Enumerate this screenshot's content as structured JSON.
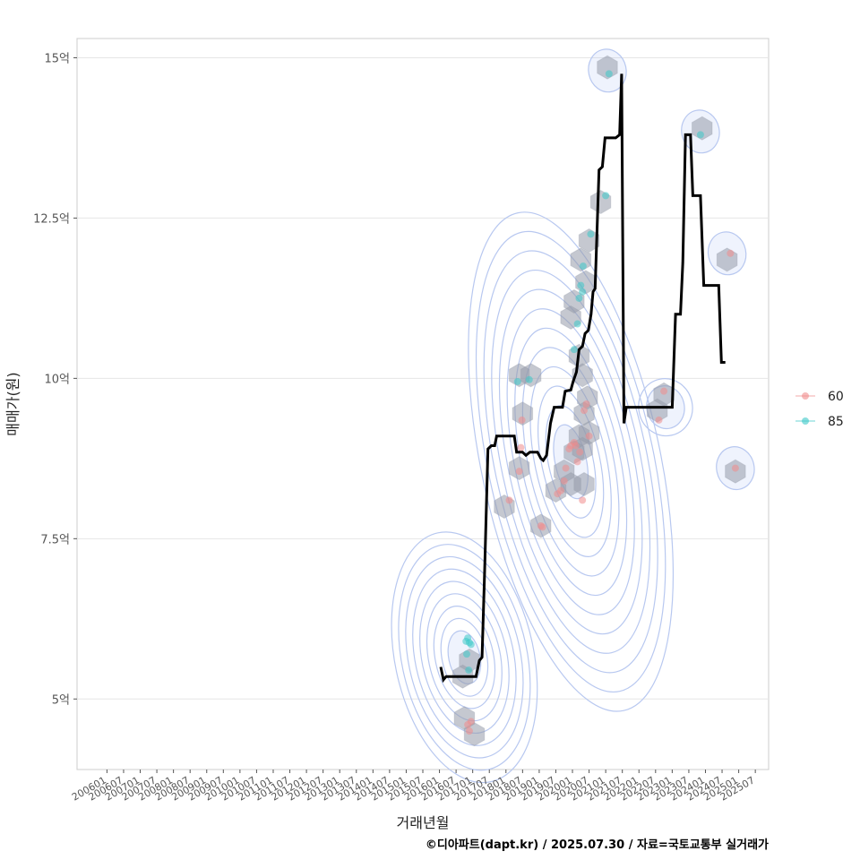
{
  "chart_data": {
    "type": "line",
    "title": "",
    "xlabel": "거래년월",
    "ylabel": "매매가(원)",
    "caption": "©디아파트(dapt.kr) / 2025.07.30 / 자료=국토교통부 실거래가",
    "x_ticks": [
      "200601",
      "200607",
      "200701",
      "200707",
      "200801",
      "200807",
      "200901",
      "200907",
      "201001",
      "201007",
      "201101",
      "201107",
      "201201",
      "201207",
      "201301",
      "201307",
      "201401",
      "201407",
      "201501",
      "201507",
      "201601",
      "201607",
      "201701",
      "201707",
      "201801",
      "201807",
      "201901",
      "201907",
      "202001",
      "202007",
      "202101",
      "202107",
      "202201",
      "202207",
      "202301",
      "202307",
      "202401",
      "202407",
      "202501",
      "202507"
    ],
    "y_ticks": [
      {
        "value": 5,
        "label": "5억"
      },
      {
        "value": 7.5,
        "label": "7.5억"
      },
      {
        "value": 10,
        "label": "10억"
      },
      {
        "value": 12.5,
        "label": "12.5억"
      },
      {
        "value": 15,
        "label": "15억"
      }
    ],
    "xlim": [
      2005.1,
      2025.9
    ],
    "ylim": [
      3.9,
      15.3
    ],
    "legend": {
      "placement": "right",
      "entries": [
        {
          "label": "60",
          "color": "#f08c8c"
        },
        {
          "label": "85",
          "color": "#3cc8c8"
        }
      ]
    },
    "median_line": {
      "name": "median price",
      "color": "#000000",
      "points": [
        [
          2016.04,
          5.5
        ],
        [
          2016.12,
          5.3
        ],
        [
          2016.2,
          5.35
        ],
        [
          2016.6,
          5.35
        ],
        [
          2017.1,
          5.35
        ],
        [
          2017.2,
          5.6
        ],
        [
          2017.28,
          5.65
        ],
        [
          2017.36,
          7.0
        ],
        [
          2017.46,
          8.9
        ],
        [
          2017.56,
          8.95
        ],
        [
          2017.66,
          8.95
        ],
        [
          2017.72,
          9.1
        ],
        [
          2018.25,
          9.1
        ],
        [
          2018.32,
          8.85
        ],
        [
          2018.5,
          8.85
        ],
        [
          2018.6,
          8.8
        ],
        [
          2018.72,
          8.85
        ],
        [
          2018.95,
          8.85
        ],
        [
          2019.05,
          8.75
        ],
        [
          2019.12,
          8.72
        ],
        [
          2019.22,
          8.8
        ],
        [
          2019.34,
          9.3
        ],
        [
          2019.45,
          9.55
        ],
        [
          2019.55,
          9.55
        ],
        [
          2019.7,
          9.55
        ],
        [
          2019.78,
          9.8
        ],
        [
          2019.95,
          9.82
        ],
        [
          2020.02,
          9.95
        ],
        [
          2020.12,
          10.1
        ],
        [
          2020.2,
          10.45
        ],
        [
          2020.3,
          10.5
        ],
        [
          2020.38,
          10.7
        ],
        [
          2020.48,
          10.75
        ],
        [
          2020.56,
          11.0
        ],
        [
          2020.62,
          11.35
        ],
        [
          2020.68,
          11.4
        ],
        [
          2020.8,
          13.25
        ],
        [
          2020.9,
          13.3
        ],
        [
          2020.98,
          13.75
        ],
        [
          2021.12,
          13.75
        ],
        [
          2021.3,
          13.75
        ],
        [
          2021.42,
          13.8
        ],
        [
          2021.48,
          14.75
        ],
        [
          2021.55,
          9.3
        ],
        [
          2021.62,
          9.55
        ],
        [
          2022.3,
          9.55
        ],
        [
          2022.7,
          9.55
        ],
        [
          2023.0,
          9.55
        ],
        [
          2023.1,
          11.0
        ],
        [
          2023.25,
          11.0
        ],
        [
          2023.32,
          11.8
        ],
        [
          2023.4,
          13.8
        ],
        [
          2023.55,
          13.8
        ],
        [
          2023.62,
          12.85
        ],
        [
          2023.85,
          12.85
        ],
        [
          2023.95,
          11.45
        ],
        [
          2024.4,
          11.45
        ],
        [
          2024.48,
          10.25
        ],
        [
          2024.6,
          10.25
        ]
      ]
    },
    "series": [
      {
        "name": "60",
        "color": "#f08c8c",
        "points": [
          [
            2016.85,
            4.6
          ],
          [
            2016.9,
            4.5
          ],
          [
            2016.95,
            4.65
          ],
          [
            2018.1,
            8.1
          ],
          [
            2018.4,
            8.55
          ],
          [
            2018.45,
            8.92
          ],
          [
            2018.48,
            9.35
          ],
          [
            2019.05,
            7.7
          ],
          [
            2019.1,
            7.68
          ],
          [
            2019.55,
            8.2
          ],
          [
            2019.65,
            8.25
          ],
          [
            2019.75,
            8.4
          ],
          [
            2019.8,
            8.6
          ],
          [
            2019.9,
            8.9
          ],
          [
            2019.95,
            8.95
          ],
          [
            2020.05,
            9.0
          ],
          [
            2020.1,
            8.95
          ],
          [
            2020.15,
            8.7
          ],
          [
            2020.22,
            8.85
          ],
          [
            2020.3,
            8.1
          ],
          [
            2020.35,
            9.5
          ],
          [
            2020.42,
            9.6
          ],
          [
            2020.5,
            9.1
          ],
          [
            2022.6,
            9.35
          ],
          [
            2022.75,
            9.8
          ],
          [
            2024.9,
            8.6
          ],
          [
            2024.75,
            11.95
          ]
        ]
      },
      {
        "name": "85",
        "color": "#3cc8c8",
        "points": [
          [
            2016.8,
            5.9
          ],
          [
            2016.85,
            5.95
          ],
          [
            2016.9,
            5.88
          ],
          [
            2016.95,
            5.85
          ],
          [
            2016.82,
            5.7
          ],
          [
            2016.88,
            5.45
          ],
          [
            2018.35,
            9.95
          ],
          [
            2018.7,
            9.98
          ],
          [
            2020.05,
            10.45
          ],
          [
            2020.15,
            10.85
          ],
          [
            2020.2,
            11.25
          ],
          [
            2020.25,
            11.45
          ],
          [
            2020.3,
            11.35
          ],
          [
            2020.32,
            11.75
          ],
          [
            2020.55,
            12.25
          ],
          [
            2021.0,
            12.85
          ],
          [
            2021.1,
            14.75
          ],
          [
            2023.85,
            13.8
          ]
        ]
      }
    ],
    "hexbin_centers": [
      [
        2016.75,
        4.7
      ],
      [
        2017.05,
        4.45
      ],
      [
        2016.7,
        5.35
      ],
      [
        2016.9,
        5.6
      ],
      [
        2017.95,
        8.0
      ],
      [
        2018.4,
        8.6
      ],
      [
        2018.5,
        9.45
      ],
      [
        2018.4,
        10.05
      ],
      [
        2018.75,
        10.05
      ],
      [
        2019.05,
        7.7
      ],
      [
        2019.5,
        8.25
      ],
      [
        2019.75,
        8.55
      ],
      [
        2019.95,
        8.35
      ],
      [
        2020.05,
        8.85
      ],
      [
        2020.2,
        9.1
      ],
      [
        2020.3,
        8.9
      ],
      [
        2020.5,
        9.15
      ],
      [
        2020.35,
        9.45
      ],
      [
        2020.45,
        9.7
      ],
      [
        2020.35,
        8.35
      ],
      [
        2020.2,
        10.35
      ],
      [
        2020.3,
        10.05
      ],
      [
        2019.95,
        10.95
      ],
      [
        2020.05,
        11.2
      ],
      [
        2020.4,
        11.5
      ],
      [
        2020.25,
        11.85
      ],
      [
        2020.5,
        12.15
      ],
      [
        2020.85,
        12.75
      ],
      [
        2021.05,
        14.85
      ],
      [
        2022.55,
        9.5
      ],
      [
        2022.75,
        9.75
      ],
      [
        2023.9,
        13.9
      ],
      [
        2024.65,
        11.85
      ],
      [
        2024.9,
        8.55
      ]
    ],
    "density_peaks": [
      {
        "x": 2019.95,
        "y": 8.7,
        "levels": 12
      },
      {
        "x": 2016.75,
        "y": 5.65,
        "levels": 9
      },
      {
        "x": 2022.8,
        "y": 9.55,
        "levels": 2
      },
      {
        "x": 2021.05,
        "y": 14.8,
        "levels": 1
      },
      {
        "x": 2024.65,
        "y": 11.95,
        "levels": 1
      },
      {
        "x": 2023.85,
        "y": 13.85,
        "levels": 1
      },
      {
        "x": 2024.9,
        "y": 8.6,
        "levels": 1
      }
    ]
  }
}
